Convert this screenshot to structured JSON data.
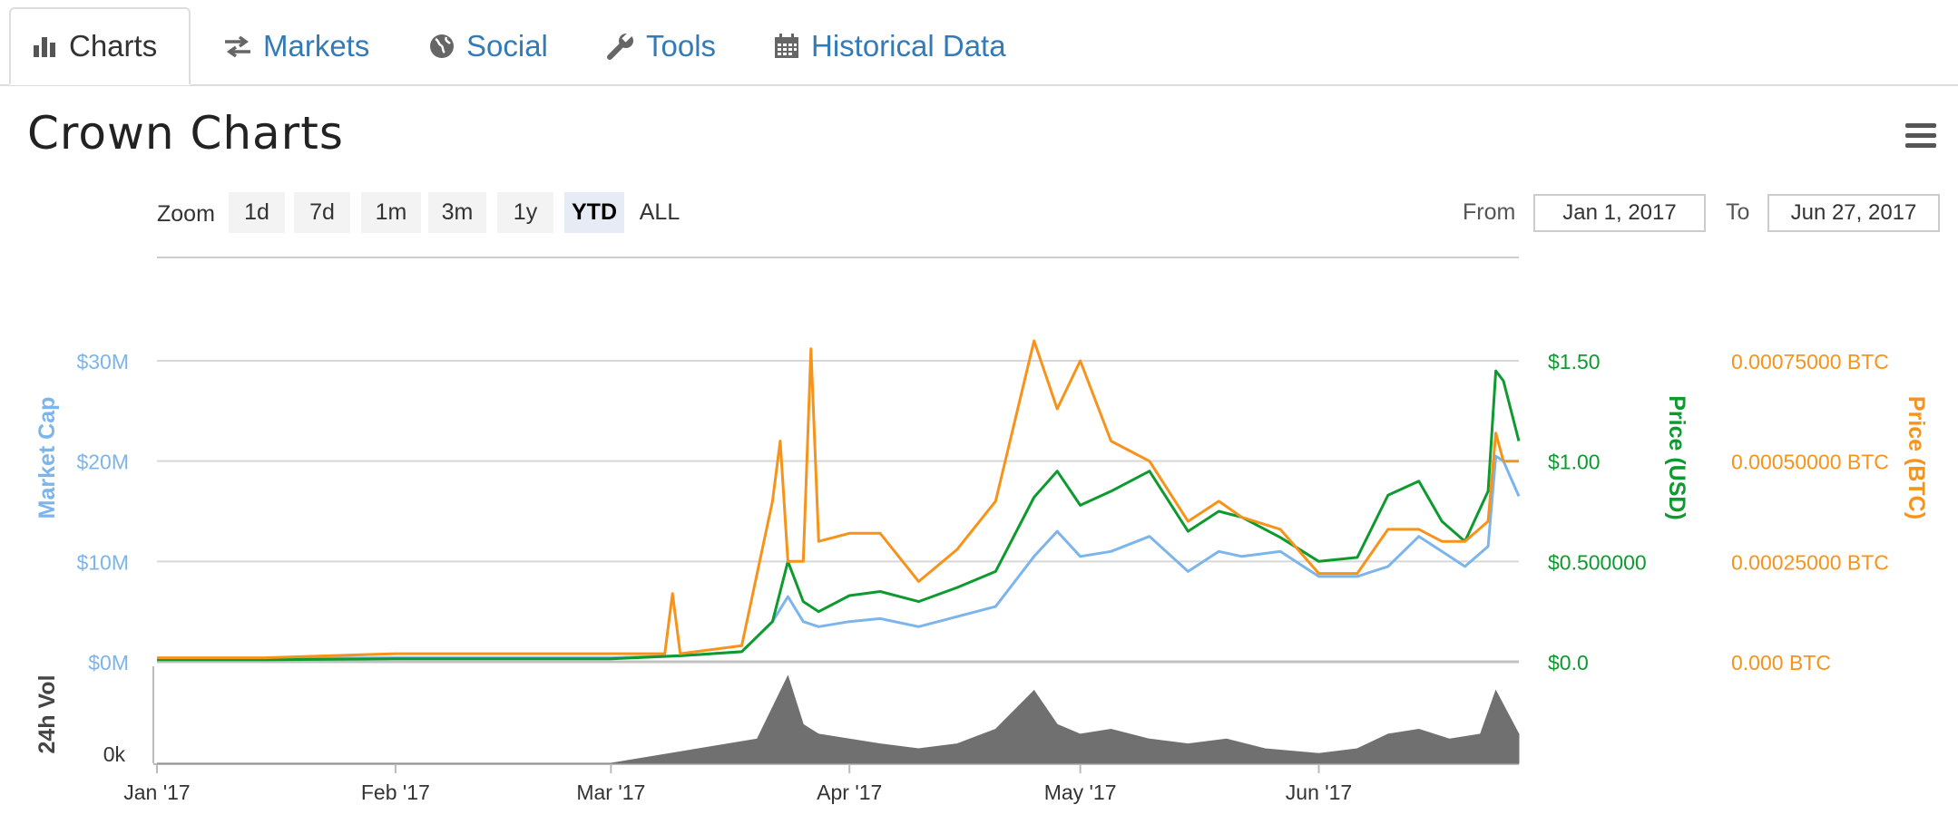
{
  "tabs": [
    {
      "label": "Charts",
      "icon": "bar-chart-icon",
      "active": true
    },
    {
      "label": "Markets",
      "icon": "exchange-arrows-icon",
      "active": false
    },
    {
      "label": "Social",
      "icon": "globe-icon",
      "active": false
    },
    {
      "label": "Tools",
      "icon": "wrench-icon",
      "active": false
    },
    {
      "label": "Historical Data",
      "icon": "calendar-icon",
      "active": false
    }
  ],
  "page_title": "Crown Charts",
  "zoom": {
    "label": "Zoom",
    "buttons": [
      "1d",
      "7d",
      "1m",
      "3m",
      "1y",
      "YTD",
      "ALL"
    ],
    "selected": "YTD"
  },
  "range": {
    "from_label": "From",
    "from_value": "Jan 1, 2017",
    "to_label": "To",
    "to_value": "Jun 27, 2017"
  },
  "colors": {
    "market_cap": "#7cb5ec",
    "price_usd": "#0d9a2f",
    "price_btc": "#f7931a",
    "volume": "#707070",
    "link": "#337ab7"
  },
  "chart_data": {
    "type": "line",
    "x_range": [
      "2017-01-01",
      "2017-06-27"
    ],
    "x_tick_labels": [
      "Jan '17",
      "Feb '17",
      "Mar '17",
      "Apr '17",
      "May '17",
      "Jun '17"
    ],
    "x_tick_dates": [
      "2017-01-01",
      "2017-02-01",
      "2017-03-01",
      "2017-04-01",
      "2017-05-01",
      "2017-06-01"
    ],
    "grid": true,
    "axes": {
      "market_cap": {
        "label": "Market Cap",
        "ylim": [
          0,
          30000000
        ],
        "tick_labels": [
          "$0M",
          "$10M",
          "$20M",
          "$30M"
        ]
      },
      "price_usd": {
        "label": "Price (USD)",
        "ylim": [
          0,
          1.5
        ],
        "tick_labels": [
          "$0.0",
          "$0.500000",
          "$1.00",
          "$1.50"
        ]
      },
      "price_btc": {
        "label": "Price (BTC)",
        "ylim": [
          0,
          0.00075
        ],
        "tick_labels": [
          "0.000 BTC",
          "0.00025000 BTC",
          "0.00050000 BTC",
          "0.00075000 BTC"
        ]
      },
      "volume": {
        "label": "24h Vol",
        "tick_labels": [
          "0k"
        ]
      }
    },
    "series": [
      {
        "name": "Market Cap",
        "axis": "market_cap",
        "x": [
          "2017-01-01",
          "2017-01-15",
          "2017-02-01",
          "2017-02-15",
          "2017-03-01",
          "2017-03-10",
          "2017-03-18",
          "2017-03-22",
          "2017-03-24",
          "2017-03-26",
          "2017-03-28",
          "2017-04-01",
          "2017-04-05",
          "2017-04-10",
          "2017-04-15",
          "2017-04-20",
          "2017-04-25",
          "2017-04-28",
          "2017-05-01",
          "2017-05-05",
          "2017-05-10",
          "2017-05-15",
          "2017-05-19",
          "2017-05-22",
          "2017-05-27",
          "2017-06-01",
          "2017-06-06",
          "2017-06-10",
          "2017-06-14",
          "2017-06-17",
          "2017-06-20",
          "2017-06-23",
          "2017-06-24",
          "2017-06-25",
          "2017-06-27"
        ],
        "values": [
          300000,
          300000,
          400000,
          400000,
          400000,
          600000,
          1000000,
          4000000,
          6500000,
          4000000,
          3500000,
          4000000,
          4300000,
          3500000,
          4500000,
          5500000,
          10500000,
          13000000,
          10500000,
          11000000,
          12500000,
          9000000,
          11000000,
          10500000,
          11000000,
          8500000,
          8500000,
          9500000,
          12500000,
          11000000,
          9500000,
          11500000,
          20500000,
          20000000,
          16500000
        ]
      },
      {
        "name": "Price (USD)",
        "axis": "price_usd",
        "x": [
          "2017-01-01",
          "2017-01-15",
          "2017-02-01",
          "2017-02-15",
          "2017-03-01",
          "2017-03-10",
          "2017-03-18",
          "2017-03-22",
          "2017-03-24",
          "2017-03-26",
          "2017-03-28",
          "2017-04-01",
          "2017-04-05",
          "2017-04-10",
          "2017-04-15",
          "2017-04-20",
          "2017-04-25",
          "2017-04-28",
          "2017-05-01",
          "2017-05-05",
          "2017-05-10",
          "2017-05-15",
          "2017-05-19",
          "2017-05-22",
          "2017-05-27",
          "2017-06-01",
          "2017-06-06",
          "2017-06-10",
          "2017-06-14",
          "2017-06-17",
          "2017-06-20",
          "2017-06-23",
          "2017-06-24",
          "2017-06-25",
          "2017-06-27"
        ],
        "values": [
          0.01,
          0.01,
          0.015,
          0.015,
          0.015,
          0.03,
          0.05,
          0.2,
          0.5,
          0.3,
          0.25,
          0.33,
          0.35,
          0.3,
          0.37,
          0.45,
          0.82,
          0.95,
          0.78,
          0.85,
          0.95,
          0.65,
          0.75,
          0.72,
          0.62,
          0.5,
          0.52,
          0.83,
          0.9,
          0.7,
          0.6,
          0.85,
          1.45,
          1.4,
          1.1
        ]
      },
      {
        "name": "Price (BTC)",
        "axis": "price_btc",
        "x": [
          "2017-01-01",
          "2017-01-15",
          "2017-02-01",
          "2017-02-15",
          "2017-03-01",
          "2017-03-08",
          "2017-03-09",
          "2017-03-10",
          "2017-03-18",
          "2017-03-22",
          "2017-03-23",
          "2017-03-24",
          "2017-03-26",
          "2017-03-27",
          "2017-03-28",
          "2017-04-01",
          "2017-04-05",
          "2017-04-10",
          "2017-04-15",
          "2017-04-20",
          "2017-04-25",
          "2017-04-28",
          "2017-05-01",
          "2017-05-05",
          "2017-05-10",
          "2017-05-15",
          "2017-05-19",
          "2017-05-22",
          "2017-05-27",
          "2017-06-01",
          "2017-06-06",
          "2017-06-10",
          "2017-06-14",
          "2017-06-17",
          "2017-06-20",
          "2017-06-23",
          "2017-06-24",
          "2017-06-25",
          "2017-06-27"
        ],
        "values": [
          1e-05,
          1e-05,
          2e-05,
          2e-05,
          2e-05,
          2e-05,
          0.00017,
          2e-05,
          4e-05,
          0.0004,
          0.00055,
          0.00025,
          0.00025,
          0.00078,
          0.0003,
          0.00032,
          0.00032,
          0.0002,
          0.00028,
          0.0004,
          0.0008,
          0.00063,
          0.00075,
          0.00055,
          0.0005,
          0.00035,
          0.0004,
          0.00036,
          0.00033,
          0.00022,
          0.00022,
          0.00033,
          0.00033,
          0.0003,
          0.0003,
          0.00035,
          0.00057,
          0.0005,
          0.0005
        ]
      },
      {
        "name": "24h Vol",
        "axis": "volume",
        "x": [
          "2017-01-01",
          "2017-03-01",
          "2017-03-20",
          "2017-03-24",
          "2017-03-26",
          "2017-03-28",
          "2017-04-01",
          "2017-04-05",
          "2017-04-10",
          "2017-04-15",
          "2017-04-20",
          "2017-04-25",
          "2017-04-28",
          "2017-05-01",
          "2017-05-05",
          "2017-05-10",
          "2017-05-15",
          "2017-05-20",
          "2017-05-25",
          "2017-06-01",
          "2017-06-06",
          "2017-06-10",
          "2017-06-14",
          "2017-06-18",
          "2017-06-22",
          "2017-06-24",
          "2017-06-27"
        ],
        "values": [
          0,
          0,
          0.25,
          0.9,
          0.4,
          0.3,
          0.25,
          0.2,
          0.15,
          0.2,
          0.35,
          0.75,
          0.4,
          0.3,
          0.35,
          0.25,
          0.2,
          0.25,
          0.15,
          0.1,
          0.15,
          0.3,
          0.35,
          0.25,
          0.3,
          0.75,
          0.3
        ]
      }
    ]
  }
}
